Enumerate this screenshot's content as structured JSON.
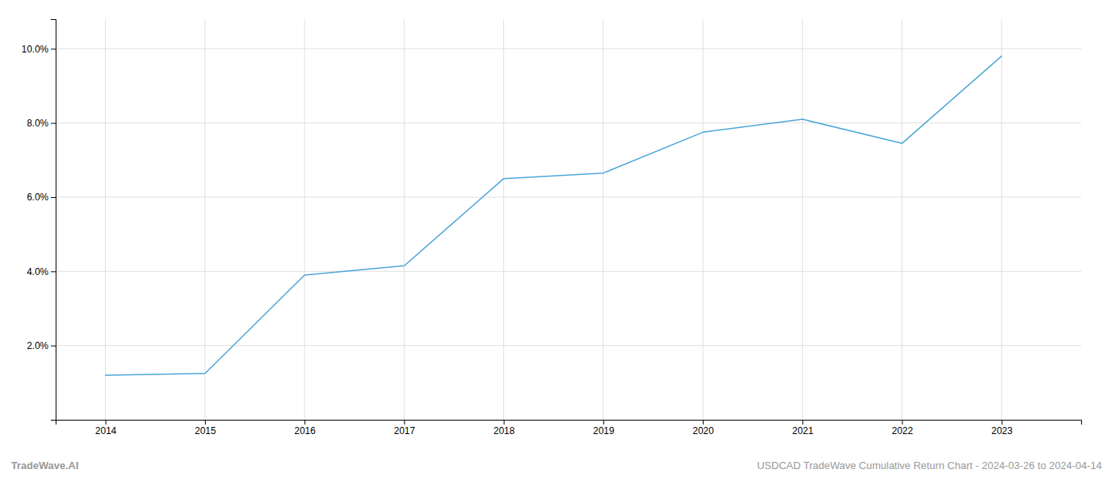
{
  "chart_data": {
    "type": "line",
    "x": [
      2014,
      2015,
      2016,
      2017,
      2018,
      2019,
      2020,
      2021,
      2022,
      2023
    ],
    "values": [
      1.2,
      1.25,
      3.9,
      4.15,
      6.5,
      6.65,
      7.75,
      8.1,
      7.45,
      9.8
    ],
    "color": "#4da6d8",
    "xlim": [
      2013.5,
      2023.8
    ],
    "ylim": [
      0.0,
      10.8
    ],
    "xticks": [
      2014,
      2015,
      2016,
      2017,
      2018,
      2019,
      2020,
      2021,
      2022,
      2023
    ],
    "yticks": [
      {
        "value": 2.0,
        "label": "2.0%"
      },
      {
        "value": 4.0,
        "label": "4.0%"
      },
      {
        "value": 6.0,
        "label": "6.0%"
      },
      {
        "value": 8.0,
        "label": "8.0%"
      },
      {
        "value": 10.0,
        "label": "10.0%"
      }
    ],
    "grid": true,
    "annotations": [
      "TradeWave.AI",
      "USDCAD TradeWave Cumulative Return Chart - 2024-03-26 to 2024-04-14"
    ]
  }
}
